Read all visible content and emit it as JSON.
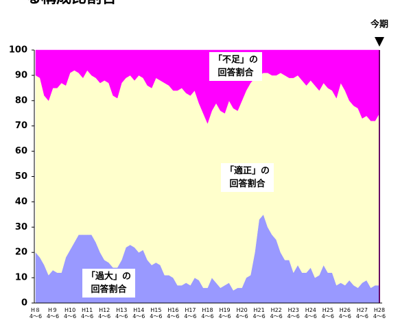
{
  "chart_data": {
    "type": "stacked_area",
    "title": "る構成比割合",
    "categories": [
      "H８\n4～6",
      null,
      null,
      null,
      "H９\n4～6",
      null,
      null,
      null,
      "H10\n4～6",
      null,
      null,
      null,
      "H11\n4～6",
      null,
      null,
      null,
      "H12\n4～6",
      null,
      null,
      null,
      "H13\n4～6",
      null,
      null,
      null,
      "H14\n4～6",
      null,
      null,
      null,
      "H15\n4～6",
      null,
      null,
      null,
      "H16\n4～6",
      null,
      null,
      null,
      "H17\n4～6",
      null,
      null,
      null,
      "H18\n4～6",
      null,
      null,
      null,
      "H19\n4～6",
      null,
      null,
      null,
      "H20\n4～6",
      null,
      null,
      null,
      "H21\n4～6",
      null,
      null,
      null,
      "H22\n4～6",
      null,
      null,
      null,
      "H23\n4～6",
      null,
      null,
      null,
      "H24\n4～6",
      null,
      null,
      null,
      "H25\n4～6",
      null,
      null,
      null,
      "H26\n4～6",
      null,
      null,
      null,
      "H27\n4～6",
      null,
      null,
      null,
      "H28\n4～6"
    ],
    "series": [
      {
        "name": "過大",
        "color": "#9999ff",
        "values": [
          20,
          18,
          15,
          11,
          13,
          12,
          12,
          18,
          21,
          24,
          27,
          27,
          27,
          27,
          24,
          20,
          17,
          16,
          14,
          14,
          17,
          22,
          23,
          22,
          20,
          21,
          17,
          15,
          16,
          15,
          11,
          11,
          10,
          7,
          7,
          8,
          7,
          10,
          9,
          6,
          6,
          10,
          8,
          6,
          7,
          8,
          5,
          6,
          6,
          10,
          11,
          20,
          33,
          35,
          30,
          27,
          25,
          20,
          17,
          17,
          12,
          15,
          12,
          12,
          14,
          10,
          11,
          15,
          12,
          12,
          7,
          8,
          7,
          9,
          7,
          6,
          8,
          9,
          6,
          7,
          7
        ]
      },
      {
        "name": "適正",
        "color": "#ffffcc",
        "values": [
          70,
          71,
          67,
          69,
          72,
          73,
          75,
          68,
          70,
          68,
          64,
          62,
          65,
          63,
          65,
          67,
          71,
          71,
          68,
          67,
          70,
          67,
          67,
          66,
          70,
          68,
          69,
          70,
          73,
          73,
          76,
          75,
          74,
          77,
          78,
          75,
          75,
          74,
          70,
          69,
          65,
          66,
          71,
          70,
          68,
          72,
          72,
          70,
          74,
          74,
          76,
          69,
          57,
          56,
          61,
          63,
          65,
          71,
          73,
          72,
          77,
          75,
          76,
          74,
          74,
          76,
          73,
          72,
          73,
          72,
          74,
          79,
          77,
          71,
          71,
          71,
          65,
          65,
          66,
          65,
          68
        ]
      },
      {
        "name": "不足",
        "color": "#ff00ff",
        "values": [
          10,
          11,
          18,
          20,
          15,
          15,
          13,
          14,
          9,
          8,
          9,
          11,
          8,
          10,
          11,
          13,
          12,
          13,
          18,
          19,
          13,
          11,
          10,
          12,
          10,
          11,
          14,
          15,
          11,
          12,
          13,
          14,
          16,
          16,
          15,
          17,
          18,
          16,
          21,
          25,
          29,
          24,
          21,
          24,
          25,
          20,
          23,
          24,
          20,
          16,
          13,
          11,
          10,
          9,
          9,
          10,
          10,
          9,
          10,
          11,
          11,
          10,
          12,
          14,
          12,
          14,
          16,
          13,
          15,
          16,
          19,
          13,
          16,
          20,
          22,
          23,
          27,
          26,
          28,
          28,
          25
        ]
      }
    ],
    "annotations": [
      {
        "text": "「不足」の\n回答割合",
        "series": 2
      },
      {
        "text": "「適正」の\n回答割合",
        "series": 1
      },
      {
        "text": "「過大」の\n回答割合",
        "series": 0
      },
      {
        "text": "今期"
      }
    ],
    "ylim": [
      0,
      100
    ],
    "yticks": [
      0,
      10,
      20,
      30,
      40,
      50,
      60,
      70,
      80,
      90,
      100
    ],
    "grid": false
  }
}
